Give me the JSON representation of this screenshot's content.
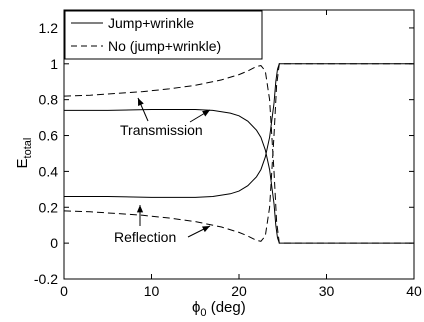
{
  "chart_data": {
    "type": "line",
    "xlabel": "ϕ0 (deg)",
    "xlabel_main": "ϕ",
    "xlabel_sub": "0",
    "xlabel_tail": " (deg)",
    "ylabel": "Etotal",
    "ylabel_main": "E",
    "ylabel_sub": "total",
    "xlim": [
      0,
      40
    ],
    "ylim": [
      -0.2,
      1.3
    ],
    "xticks": [
      0,
      10,
      20,
      30,
      40
    ],
    "xtick_labels": [
      "0",
      "10",
      "20",
      "30",
      "40"
    ],
    "yticks": [
      -0.2,
      0,
      0.2,
      0.4,
      0.6,
      0.8,
      1,
      1.2
    ],
    "ytick_labels": [
      "-0.2",
      "0",
      "0.2",
      "0.4",
      "0.6",
      "0.8",
      "1",
      "1.2"
    ],
    "grid": false,
    "legend_position": "top-left",
    "series": [
      {
        "name": "Jump+wrinkle",
        "style": "solid",
        "role": "transmission",
        "x": [
          0,
          5,
          10,
          15,
          17,
          19,
          20,
          21,
          22,
          22.5,
          23,
          23.5,
          24,
          24.2,
          24.4,
          24.6,
          25,
          30,
          35,
          40
        ],
        "y": [
          0.74,
          0.74,
          0.745,
          0.745,
          0.74,
          0.725,
          0.71,
          0.68,
          0.63,
          0.59,
          0.52,
          0.41,
          0.22,
          0.1,
          0.03,
          0.0,
          0.0,
          0.0,
          0.0,
          0.0
        ]
      },
      {
        "name": "Jump+wrinkle",
        "style": "solid",
        "role": "reflection",
        "x": [
          0,
          5,
          10,
          15,
          17,
          19,
          20,
          21,
          22,
          22.5,
          23,
          23.5,
          24,
          24.2,
          24.4,
          24.6,
          25,
          30,
          35,
          40
        ],
        "y": [
          0.26,
          0.26,
          0.255,
          0.255,
          0.26,
          0.275,
          0.29,
          0.32,
          0.37,
          0.41,
          0.48,
          0.59,
          0.78,
          0.9,
          0.97,
          1.0,
          1.0,
          1.0,
          1.0,
          1.0
        ]
      },
      {
        "name": "No (jump+wrinkle)",
        "style": "dashed",
        "role": "transmission",
        "x": [
          0,
          3,
          6,
          9,
          12,
          15,
          18,
          20,
          21,
          22,
          22.5,
          23,
          23.5,
          24,
          24.3,
          24.6,
          25,
          30,
          35,
          40
        ],
        "y": [
          0.82,
          0.825,
          0.835,
          0.845,
          0.86,
          0.88,
          0.91,
          0.94,
          0.96,
          0.985,
          0.99,
          0.96,
          0.8,
          0.4,
          0.12,
          0.0,
          0.0,
          0.0,
          0.0,
          0.0
        ]
      },
      {
        "name": "No (jump+wrinkle)",
        "style": "dashed",
        "role": "reflection",
        "x": [
          0,
          3,
          6,
          9,
          12,
          15,
          18,
          20,
          21,
          22,
          22.5,
          23,
          23.5,
          24,
          24.3,
          24.6,
          25,
          30,
          35,
          40
        ],
        "y": [
          0.18,
          0.175,
          0.165,
          0.155,
          0.14,
          0.12,
          0.09,
          0.06,
          0.04,
          0.015,
          0.01,
          0.04,
          0.2,
          0.6,
          0.88,
          1.0,
          1.0,
          1.0,
          1.0,
          1.0
        ]
      }
    ],
    "annotations": [
      {
        "text": "Transmission"
      },
      {
        "text": "Reflection"
      }
    ]
  }
}
